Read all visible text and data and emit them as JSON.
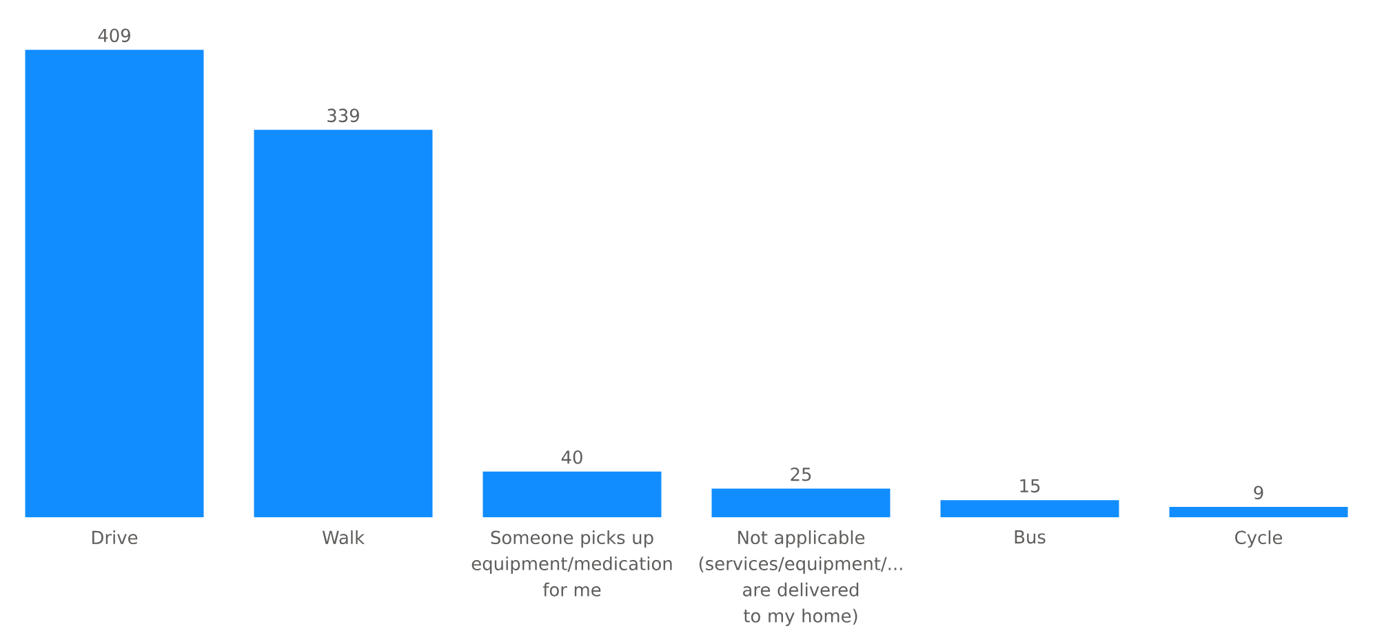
{
  "chart_data": {
    "type": "bar",
    "categories": [
      "Drive",
      "Walk",
      "Someone picks up equipment/medication for me",
      "Not applicable (services/equipment/... are delivered to my home)",
      "Bus",
      "Cycle"
    ],
    "values": [
      409,
      339,
      40,
      25,
      15,
      9
    ],
    "color": "#118dff",
    "data_labels": true
  }
}
